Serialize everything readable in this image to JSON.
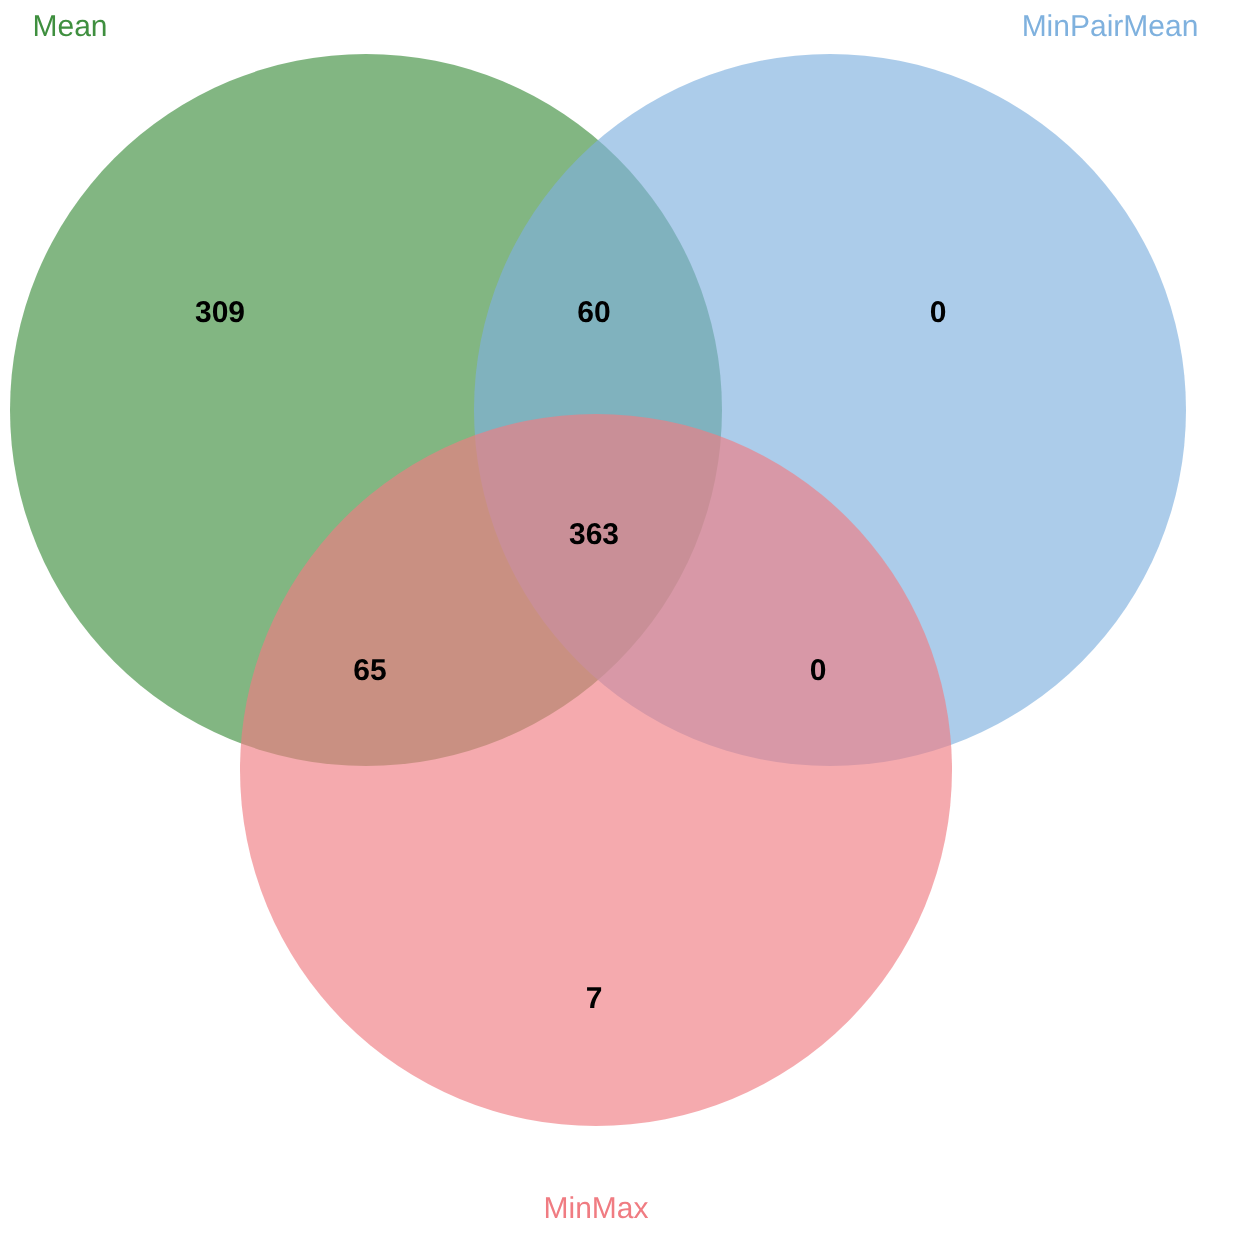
{
  "chart_data": {
    "type": "other",
    "categories": [
      null,
      null,
      null,
      null,
      null,
      null,
      null
    ],
    "values": [
      309,
      60,
      0,
      363,
      65,
      0,
      7
    ],
    "data_labels": true,
    "annotations": [
      "Mean",
      "MinPairMean",
      "MinMax"
    ]
  }
}
